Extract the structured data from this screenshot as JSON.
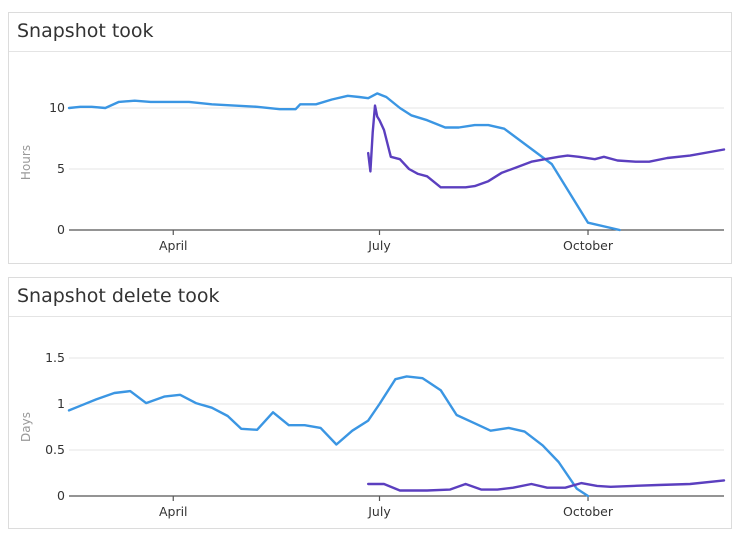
{
  "chart_data": [
    {
      "type": "line",
      "title": "Snapshot took",
      "ylabel": "Hours",
      "xlabel": "",
      "ylim": [
        0,
        12.5
      ],
      "xlim": [
        "2024-02-15",
        "2024-11-30"
      ],
      "x_ticks": [
        "April",
        "July",
        "October"
      ],
      "y_ticks": [
        "0",
        "5",
        "10"
      ],
      "grid": true,
      "colors": [
        "#3b96e3",
        "#5b3fbf"
      ],
      "series": [
        {
          "color": "#3b96e3",
          "x": [
            "2024-02-15",
            "2024-02-20",
            "2024-02-25",
            "2024-03-02",
            "2024-03-08",
            "2024-03-15",
            "2024-03-22",
            "2024-03-30",
            "2024-04-08",
            "2024-04-18",
            "2024-04-28",
            "2024-05-08",
            "2024-05-18",
            "2024-05-25",
            "2024-05-27",
            "2024-06-03",
            "2024-06-10",
            "2024-06-17",
            "2024-06-22",
            "2024-06-26",
            "2024-06-30",
            "2024-07-04",
            "2024-07-10",
            "2024-07-15",
            "2024-07-22",
            "2024-07-30",
            "2024-08-05",
            "2024-08-12",
            "2024-08-18",
            "2024-08-25",
            "2024-09-15",
            "2024-10-01",
            "2024-10-15"
          ],
          "values": [
            10.0,
            10.1,
            10.1,
            10.0,
            10.5,
            10.6,
            10.5,
            10.5,
            10.5,
            10.3,
            10.2,
            10.1,
            9.9,
            9.9,
            10.3,
            10.3,
            10.7,
            11.0,
            10.9,
            10.8,
            11.2,
            10.9,
            10.0,
            9.4,
            9.0,
            8.4,
            8.4,
            8.6,
            8.6,
            8.3,
            5.4,
            0.6,
            0.0
          ]
        },
        {
          "color": "#5b3fbf",
          "x": [
            "2024-06-26",
            "2024-06-27",
            "2024-06-28",
            "2024-06-29",
            "2024-06-30",
            "2024-07-01",
            "2024-07-03",
            "2024-07-06",
            "2024-07-10",
            "2024-07-14",
            "2024-07-18",
            "2024-07-22",
            "2024-07-28",
            "2024-08-02",
            "2024-08-08",
            "2024-08-12",
            "2024-08-18",
            "2024-08-24",
            "2024-08-30",
            "2024-09-06",
            "2024-09-12",
            "2024-09-18",
            "2024-09-22",
            "2024-09-27",
            "2024-10-04",
            "2024-10-08",
            "2024-10-14",
            "2024-10-22",
            "2024-10-28",
            "2024-11-05",
            "2024-11-15",
            "2024-11-30"
          ],
          "values": [
            6.3,
            4.8,
            8.0,
            10.2,
            9.3,
            9.0,
            8.2,
            6.0,
            5.8,
            5.0,
            4.6,
            4.4,
            3.5,
            3.5,
            3.5,
            3.6,
            4.0,
            4.7,
            5.1,
            5.6,
            5.8,
            6.0,
            6.1,
            6.0,
            5.8,
            6.0,
            5.7,
            5.6,
            5.6,
            5.9,
            6.1,
            6.6
          ]
        }
      ]
    },
    {
      "type": "line",
      "title": "Snapshot delete took",
      "ylabel": "Days",
      "xlabel": "",
      "ylim": [
        0,
        1.5
      ],
      "xlim": [
        "2024-02-15",
        "2024-11-30"
      ],
      "x_ticks": [
        "April",
        "July",
        "October"
      ],
      "y_ticks": [
        "0",
        "0.5",
        "1",
        "1.5"
      ],
      "grid": true,
      "colors": [
        "#3b96e3",
        "#5b3fbf"
      ],
      "series": [
        {
          "color": "#3b96e3",
          "x": [
            "2024-02-15",
            "2024-02-20",
            "2024-02-27",
            "2024-03-06",
            "2024-03-13",
            "2024-03-20",
            "2024-03-28",
            "2024-04-04",
            "2024-04-11",
            "2024-04-18",
            "2024-04-25",
            "2024-05-01",
            "2024-05-08",
            "2024-05-15",
            "2024-05-22",
            "2024-05-29",
            "2024-06-05",
            "2024-06-12",
            "2024-06-19",
            "2024-06-26",
            "2024-07-01",
            "2024-07-08",
            "2024-07-13",
            "2024-07-20",
            "2024-07-28",
            "2024-08-04",
            "2024-08-12",
            "2024-08-19",
            "2024-08-27",
            "2024-09-03",
            "2024-09-11",
            "2024-09-18",
            "2024-09-26",
            "2024-10-01"
          ],
          "values": [
            0.93,
            0.98,
            1.05,
            1.12,
            1.14,
            1.01,
            1.08,
            1.1,
            1.01,
            0.96,
            0.87,
            0.73,
            0.72,
            0.91,
            0.77,
            0.77,
            0.74,
            0.56,
            0.71,
            0.82,
            1.0,
            1.27,
            1.3,
            1.28,
            1.15,
            0.88,
            0.79,
            0.71,
            0.74,
            0.7,
            0.55,
            0.37,
            0.08,
            0.0
          ]
        },
        {
          "color": "#5b3fbf",
          "x": [
            "2024-06-26",
            "2024-07-03",
            "2024-07-10",
            "2024-07-22",
            "2024-08-01",
            "2024-08-08",
            "2024-08-15",
            "2024-08-22",
            "2024-08-29",
            "2024-09-06",
            "2024-09-13",
            "2024-09-21",
            "2024-09-28",
            "2024-10-05",
            "2024-10-11",
            "2024-10-21",
            "2024-11-01",
            "2024-11-15",
            "2024-11-30"
          ],
          "values": [
            0.13,
            0.13,
            0.06,
            0.06,
            0.07,
            0.13,
            0.07,
            0.07,
            0.09,
            0.13,
            0.09,
            0.09,
            0.14,
            0.11,
            0.1,
            0.11,
            0.12,
            0.13,
            0.17
          ]
        }
      ]
    }
  ]
}
